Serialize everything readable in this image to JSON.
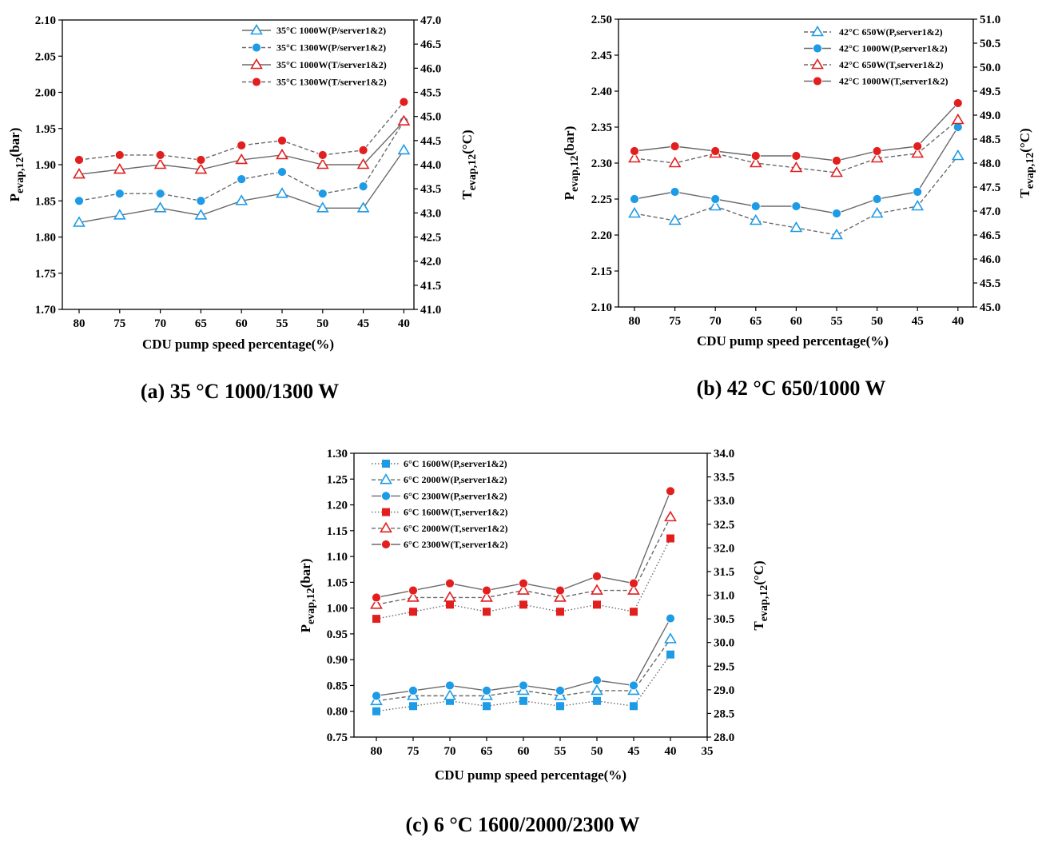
{
  "chart_data": [
    {
      "type": "line",
      "caption": "(a)  35 °C 1000/1300 W",
      "xlabel": "CDU pump speed percentage(%)",
      "ylabel_left": {
        "main": "P",
        "sub": "evap,12",
        "unit": "(bar)"
      },
      "ylabel_right": {
        "main": "T",
        "sub": "evap,12",
        "unit": "(°C)"
      },
      "categories": [
        "80",
        "75",
        "70",
        "65",
        "60",
        "55",
        "50",
        "45",
        "40"
      ],
      "x_extra_ticks": [],
      "ylim_left": [
        1.7,
        2.1
      ],
      "yticks_left": [
        "1.70",
        "1.75",
        "1.80",
        "1.85",
        "1.90",
        "1.95",
        "2.00",
        "2.05",
        "2.10"
      ],
      "ylim_right": [
        41.0,
        47.0
      ],
      "yticks_right": [
        "41.0",
        "41.5",
        "42.0",
        "42.5",
        "43.0",
        "43.5",
        "44.0",
        "44.5",
        "45.0",
        "45.5",
        "46.0",
        "46.5",
        "47.0"
      ],
      "legend_position": "top-right",
      "series": [
        {
          "name": "35°C 1000W(P/server1&2)",
          "axis": "left",
          "marker": "triangle-open",
          "color": "#1e9be6",
          "line_color": "#6a6a6a",
          "dash": "solid",
          "values": [
            1.82,
            1.83,
            1.84,
            1.83,
            1.85,
            1.86,
            1.84,
            1.84,
            1.92
          ]
        },
        {
          "name": "35°C 1300W(P/server1&2)",
          "axis": "left",
          "marker": "circle-filled",
          "color": "#1e9be6",
          "line_color": "#6a6a6a",
          "dash": "dashed",
          "values": [
            1.85,
            1.86,
            1.86,
            1.85,
            1.88,
            1.89,
            1.86,
            1.87,
            1.96
          ]
        },
        {
          "name": "35°C 1000W(T/server1&2)",
          "axis": "right",
          "marker": "triangle-open",
          "color": "#e21f1f",
          "line_color": "#6a6a6a",
          "dash": "solid",
          "values": [
            43.8,
            43.9,
            44.0,
            43.9,
            44.1,
            44.2,
            44.0,
            44.0,
            44.9
          ]
        },
        {
          "name": "35°C 1300W(T/server1&2)",
          "axis": "right",
          "marker": "circle-filled",
          "color": "#e21f1f",
          "line_color": "#6a6a6a",
          "dash": "dashed",
          "values": [
            44.1,
            44.2,
            44.2,
            44.1,
            44.4,
            44.5,
            44.2,
            44.3,
            45.3
          ]
        }
      ]
    },
    {
      "type": "line",
      "caption": "(b)  42 °C 650/1000 W",
      "xlabel": "CDU pump speed percentage(%)",
      "ylabel_left": {
        "main": "P",
        "sub": "evap,12",
        "unit": "(bar)"
      },
      "ylabel_right": {
        "main": "T",
        "sub": "evap,12",
        "unit": "(°C)"
      },
      "categories": [
        "80",
        "75",
        "70",
        "65",
        "60",
        "55",
        "50",
        "45",
        "40"
      ],
      "x_extra_ticks": [],
      "ylim_left": [
        2.1,
        2.5
      ],
      "yticks_left": [
        "2.10",
        "2.15",
        "2.20",
        "2.25",
        "2.30",
        "2.35",
        "2.40",
        "2.45",
        "2.50"
      ],
      "ylim_right": [
        45.0,
        51.0
      ],
      "yticks_right": [
        "45.0",
        "45.5",
        "46.0",
        "46.5",
        "47.0",
        "47.5",
        "48.0",
        "48.5",
        "49.0",
        "49.5",
        "50.0",
        "50.5",
        "51.0"
      ],
      "legend_position": "top-right",
      "series": [
        {
          "name": "42°C 650W(P,server1&2)",
          "axis": "left",
          "marker": "triangle-open",
          "color": "#1e9be6",
          "line_color": "#6a6a6a",
          "dash": "dashed",
          "values": [
            2.23,
            2.22,
            2.24,
            2.22,
            2.21,
            2.2,
            2.23,
            2.24,
            2.31
          ]
        },
        {
          "name": "42°C 1000W(P,server1&2)",
          "axis": "left",
          "marker": "circle-filled",
          "color": "#1e9be6",
          "line_color": "#6a6a6a",
          "dash": "solid",
          "values": [
            2.25,
            2.26,
            2.25,
            2.24,
            2.24,
            2.23,
            2.25,
            2.26,
            2.35
          ]
        },
        {
          "name": "42°C 650W(T,server1&2)",
          "axis": "right",
          "marker": "triangle-open",
          "color": "#e21f1f",
          "line_color": "#6a6a6a",
          "dash": "dashed",
          "values": [
            48.1,
            48.0,
            48.2,
            48.0,
            47.9,
            47.8,
            48.1,
            48.2,
            48.9
          ]
        },
        {
          "name": "42°C 1000W(T,server1&2)",
          "axis": "right",
          "marker": "circle-filled",
          "color": "#e21f1f",
          "line_color": "#6a6a6a",
          "dash": "solid",
          "values": [
            48.25,
            48.35,
            48.25,
            48.15,
            48.15,
            48.05,
            48.25,
            48.35,
            49.25
          ]
        }
      ]
    },
    {
      "type": "line",
      "caption": "(c)  6 °C 1600/2000/2300 W",
      "xlabel": "CDU pump speed percentage(%)",
      "ylabel_left": {
        "main": "P",
        "sub": "evap,12",
        "unit": "(bar)"
      },
      "ylabel_right": {
        "main": "T",
        "sub": "evap,12",
        "unit": "(°C)"
      },
      "categories": [
        "80",
        "75",
        "70",
        "65",
        "60",
        "55",
        "50",
        "45",
        "40"
      ],
      "x_extra_ticks": [
        "35"
      ],
      "ylim_left": [
        0.75,
        1.3
      ],
      "yticks_left": [
        "0.75",
        "0.80",
        "0.85",
        "0.90",
        "0.95",
        "1.00",
        "1.05",
        "1.10",
        "1.15",
        "1.20",
        "1.25",
        "1.30"
      ],
      "ylim_right": [
        28.0,
        34.0
      ],
      "yticks_right": [
        "28.0",
        "28.5",
        "29.0",
        "29.5",
        "30.0",
        "30.5",
        "31.0",
        "31.5",
        "32.0",
        "32.5",
        "33.0",
        "33.5",
        "34.0"
      ],
      "legend_position": "top-left",
      "series": [
        {
          "name": "6°C 1600W(P,server1&2)",
          "axis": "left",
          "marker": "square-filled",
          "color": "#1e9be6",
          "line_color": "#6a6a6a",
          "dash": "dotted",
          "values": [
            0.8,
            0.81,
            0.82,
            0.81,
            0.82,
            0.81,
            0.82,
            0.81,
            0.91
          ]
        },
        {
          "name": "6°C 2000W(P,server1&2)",
          "axis": "left",
          "marker": "triangle-open",
          "color": "#1e9be6",
          "line_color": "#6a6a6a",
          "dash": "dashed",
          "values": [
            0.82,
            0.83,
            0.83,
            0.83,
            0.84,
            0.83,
            0.84,
            0.84,
            0.94
          ]
        },
        {
          "name": "6°C 2300W(P,server1&2)",
          "axis": "left",
          "marker": "circle-filled",
          "color": "#1e9be6",
          "line_color": "#6a6a6a",
          "dash": "solid",
          "values": [
            0.83,
            0.84,
            0.85,
            0.84,
            0.85,
            0.84,
            0.86,
            0.85,
            0.98
          ]
        },
        {
          "name": "6°C 1600W(T,server1&2)",
          "axis": "right",
          "marker": "square-filled",
          "color": "#e21f1f",
          "line_color": "#6a6a6a",
          "dash": "dotted",
          "values": [
            30.5,
            30.65,
            30.8,
            30.65,
            30.8,
            30.65,
            30.8,
            30.65,
            32.2
          ]
        },
        {
          "name": "6°C 2000W(T,server1&2)",
          "axis": "right",
          "marker": "triangle-open",
          "color": "#e21f1f",
          "line_color": "#6a6a6a",
          "dash": "dashed",
          "values": [
            30.8,
            30.95,
            30.95,
            30.95,
            31.1,
            30.95,
            31.1,
            31.1,
            32.65
          ]
        },
        {
          "name": "6°C 2300W(T,server1&2)",
          "axis": "right",
          "marker": "circle-filled",
          "color": "#e21f1f",
          "line_color": "#6a6a6a",
          "dash": "solid",
          "values": [
            30.95,
            31.1,
            31.25,
            31.1,
            31.25,
            31.1,
            31.4,
            31.25,
            33.2
          ]
        }
      ]
    }
  ]
}
